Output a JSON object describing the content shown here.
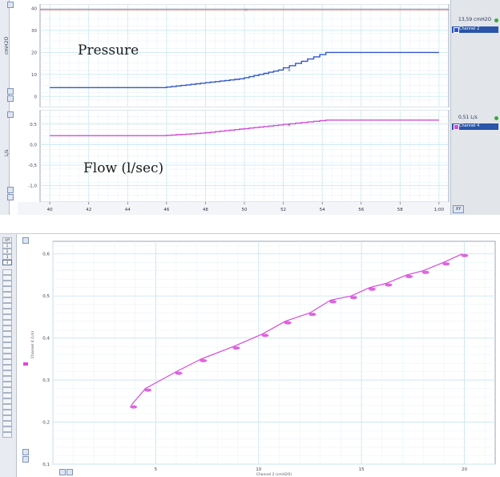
{
  "top_panel": {
    "pressure_chart": {
      "axis_unit": "cmH2O",
      "ticks": [
        "0",
        "10",
        "20",
        "30",
        "40"
      ],
      "readout": "13,59 cmH2O",
      "channel": "Channel 2",
      "overlay_label": "Pressure",
      "line_color": "#3357c9"
    },
    "flow_chart": {
      "axis_unit": "L/s",
      "ticks": [
        "-1,0",
        "-0,5",
        "0,0",
        "0,5"
      ],
      "readout": "0,51 L/s",
      "channel": "Channel 4",
      "overlay_label": "Flow (l/sec)",
      "line_color": "#d14fd6"
    },
    "time_axis": {
      "ticks": [
        "40",
        "42",
        "44",
        "46",
        "48",
        "50",
        "52",
        "54",
        "56",
        "58",
        "1:00"
      ]
    },
    "corner_button": "XY"
  },
  "bottom_panel": {
    "xy_chart": {
      "xlabel": "Channel 2 (cmH2O)",
      "ylabel": "Channel 4 (L/s)",
      "x_ticks": [
        "5",
        "10",
        "15",
        "20"
      ],
      "y_ticks": [
        "0,1",
        "0,2",
        "0,3",
        "0,4",
        "0,5",
        "0,6"
      ],
      "color": "#d84ad8"
    },
    "tab_list": [
      "Off",
      "1",
      "2",
      "3",
      "4"
    ]
  },
  "chart_data": [
    {
      "type": "line",
      "title": "",
      "xlabel": "",
      "ylabel": "cmH2O",
      "x": [
        40,
        46,
        48,
        50,
        52,
        54.5,
        56,
        58,
        60
      ],
      "series": [
        {
          "values": [
            4,
            4,
            6,
            8,
            12,
            20,
            20,
            20,
            20
          ]
        }
      ],
      "xlim": [
        39.5,
        60.5
      ],
      "ylim": [
        -5,
        42
      ],
      "grid": true
    },
    {
      "type": "line",
      "title": "",
      "xlabel": "",
      "ylabel": "L/s",
      "x": [
        40,
        46,
        48,
        50,
        52,
        54.5,
        56,
        58,
        60
      ],
      "series": [
        {
          "values": [
            0.22,
            0.22,
            0.28,
            0.38,
            0.48,
            0.6,
            0.6,
            0.6,
            0.6
          ]
        }
      ],
      "xlim": [
        39.5,
        60.5
      ],
      "ylim": [
        -1.4,
        0.85
      ],
      "grid": true
    },
    {
      "type": "scatter",
      "title": "",
      "xlabel": "Channel 2 (cmH2O)",
      "ylabel": "Channel 4 (L/s)",
      "x": [
        3.8,
        4.5,
        6,
        7.2,
        8.8,
        10.2,
        11.3,
        12.5,
        13.5,
        14.5,
        15.4,
        16.2,
        17.2,
        18,
        19,
        19.9
      ],
      "y": [
        0.24,
        0.28,
        0.32,
        0.35,
        0.38,
        0.41,
        0.44,
        0.46,
        0.49,
        0.5,
        0.52,
        0.53,
        0.55,
        0.56,
        0.58,
        0.6
      ],
      "xlim": [
        0,
        21.5
      ],
      "ylim": [
        0.1,
        0.63
      ],
      "grid": true
    }
  ]
}
